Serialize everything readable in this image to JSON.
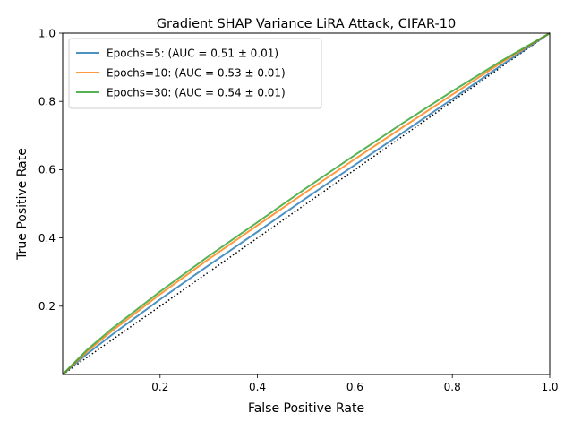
{
  "chart_data": {
    "type": "line",
    "title": "Gradient SHAP Variance LiRA Attack, CIFAR-10",
    "xlabel": "False Positive Rate",
    "ylabel": "True Positive Rate",
    "xlim": [
      0,
      1
    ],
    "ylim": [
      0,
      1
    ],
    "xticks": [
      "0.2",
      "0.4",
      "0.6",
      "0.8",
      "1.0"
    ],
    "yticks": [
      "0.2",
      "0.4",
      "0.6",
      "0.8",
      "1.0"
    ],
    "grid": false,
    "legend_position": "top-left",
    "diagonal": {
      "style": "dotted",
      "color": "#000000"
    },
    "series": [
      {
        "name": "Epochs=5: (AUC = 0.51 ± 0.01)",
        "color": "#1f77b4",
        "x": [
          0,
          0.05,
          0.1,
          0.2,
          0.3,
          0.4,
          0.5,
          0.6,
          0.7,
          0.8,
          0.9,
          1.0
        ],
        "y": [
          0,
          0.06,
          0.115,
          0.22,
          0.32,
          0.418,
          0.517,
          0.614,
          0.71,
          0.807,
          0.905,
          1.0
        ]
      },
      {
        "name": "Epochs=10: (AUC = 0.53 ± 0.01)",
        "color": "#ff7f0e",
        "x": [
          0,
          0.05,
          0.1,
          0.2,
          0.3,
          0.4,
          0.5,
          0.6,
          0.7,
          0.8,
          0.9,
          1.0
        ],
        "y": [
          0,
          0.067,
          0.126,
          0.235,
          0.338,
          0.437,
          0.535,
          0.631,
          0.726,
          0.82,
          0.913,
          1.0
        ]
      },
      {
        "name": "Epochs=30: (AUC = 0.54 ± 0.01)",
        "color": "#2ca02c",
        "x": [
          0,
          0.05,
          0.1,
          0.2,
          0.3,
          0.4,
          0.5,
          0.6,
          0.7,
          0.8,
          0.9,
          1.0
        ],
        "y": [
          0,
          0.072,
          0.133,
          0.243,
          0.347,
          0.446,
          0.546,
          0.643,
          0.738,
          0.83,
          0.918,
          1.0
        ]
      }
    ]
  }
}
